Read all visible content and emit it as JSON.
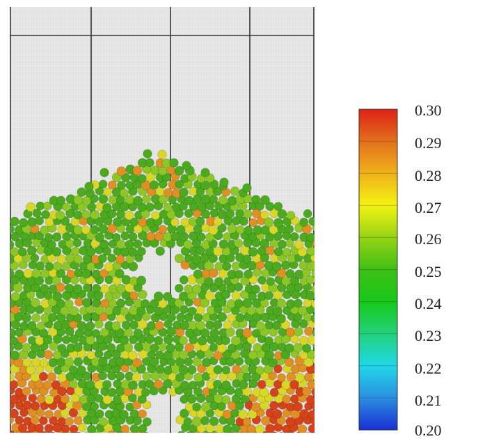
{
  "colorbar": {
    "ticks": [
      "0.30",
      "0.29",
      "0.28",
      "0.27",
      "0.26",
      "0.25",
      "0.24",
      "0.23",
      "0.22",
      "0.21",
      "0.20"
    ],
    "min": 0.2,
    "max": 0.3,
    "scale_colors": [
      "#1a2fd6",
      "#2a8fe0",
      "#20d8e8",
      "#22d27a",
      "#17c91a",
      "#3fbf14",
      "#96d414",
      "#f3f311",
      "#f0b21a",
      "#e2701c",
      "#dd2315"
    ]
  },
  "particle_colors": {
    "green": "#4caa1e",
    "light_green": "#8cc726",
    "yellow": "#d8d627",
    "orange": "#e08f23",
    "red": "#d6431b"
  }
}
